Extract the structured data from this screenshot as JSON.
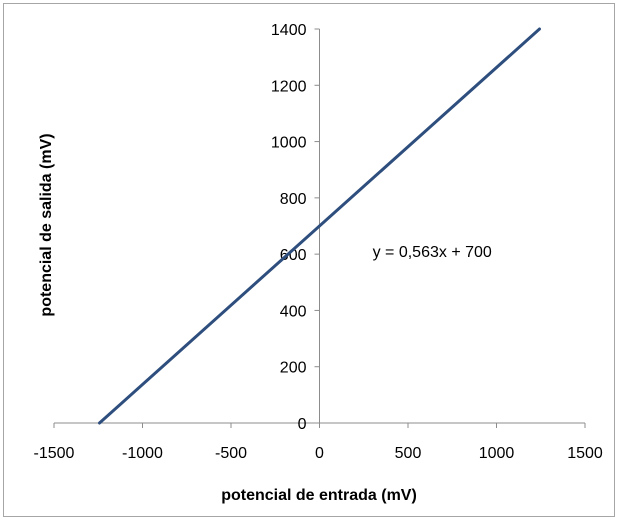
{
  "chart_data": {
    "type": "line",
    "title": "",
    "xlabel": "potencial de entrada (mV)",
    "ylabel": "potencial de salida (mV)",
    "xlim": [
      -1500,
      1500
    ],
    "ylim": [
      0,
      1400
    ],
    "x_ticks": [
      "-1500",
      "-1000",
      "-500",
      "0",
      "500",
      "1000",
      "1500"
    ],
    "y_ticks": [
      "0",
      "200",
      "400",
      "600",
      "800",
      "1000",
      "1200",
      "1400"
    ],
    "grid": false,
    "legend": "none",
    "series": [
      {
        "color": "#2e4e7e",
        "x": [
          -1243,
          1243
        ],
        "y": [
          0,
          1400
        ]
      }
    ],
    "annotations": [
      {
        "text": "y = 0,563x + 700",
        "x": 300,
        "y": 590
      }
    ]
  }
}
